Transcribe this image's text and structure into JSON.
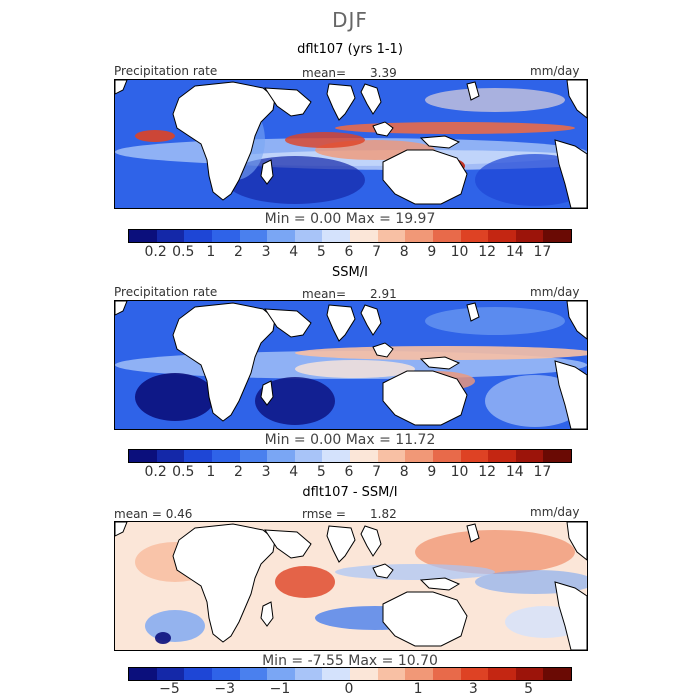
{
  "title": "DJF",
  "units": "mm/day",
  "panels": [
    {
      "title": "dflt107 (yrs 1-1)",
      "field_label": "Precipitation rate",
      "stat_label": "mean=",
      "stat_value": "3.39",
      "units": "mm/day",
      "minmax": "Min =    0.00 Max =  19.97",
      "kind": "model"
    },
    {
      "title": "SSM/I",
      "field_label": "Precipitation rate",
      "stat_label": "mean=",
      "stat_value": "2.91",
      "units": "mm/day",
      "minmax": "Min =    0.00 Max =  11.72",
      "kind": "obs"
    },
    {
      "title": "dflt107 - SSM/I",
      "field_label": "mean =  0.46",
      "stat_label": "rmse =",
      "stat_value": "1.82",
      "units": "mm/day",
      "minmax": "Min =  -7.55 Max =  10.70",
      "kind": "diff"
    }
  ],
  "colorbars": {
    "precip": {
      "colors": [
        "#0b0f7c",
        "#1428a8",
        "#1e46d6",
        "#2f63e8",
        "#4a80ee",
        "#7aa6f4",
        "#a8c4f8",
        "#d4e2fc",
        "#fbe6d8",
        "#f8c0a4",
        "#f19877",
        "#e86a4a",
        "#de4224",
        "#c42612",
        "#9c140a",
        "#6a0a04"
      ],
      "tick_labels": [
        "0.2",
        "0.5",
        "1",
        "2",
        "3",
        "4",
        "5",
        "6",
        "7",
        "8",
        "9",
        "10",
        "12",
        "14",
        "17"
      ]
    },
    "diff": {
      "colors": [
        "#0b0f7c",
        "#1428a8",
        "#1e46d6",
        "#2f63e8",
        "#4a80ee",
        "#7aa6f4",
        "#a8c4f8",
        "#d4e2fc",
        "#fbe6d8",
        "#f8c0a4",
        "#f19877",
        "#e86a4a",
        "#de4224",
        "#c42612",
        "#9c140a",
        "#6a0a04"
      ],
      "tick_labels": [
        "−5",
        "−3",
        "−1",
        "0",
        "1",
        "3",
        "5"
      ],
      "tick_positions": [
        1.5,
        3.5,
        5.5,
        8,
        10.5,
        12.5,
        14.5
      ]
    }
  },
  "chart_data": [
    {
      "type": "heatmap",
      "title": "dflt107 (yrs 1-1)",
      "variable": "Precipitation rate",
      "units": "mm/day",
      "season": "DJF",
      "mean": 3.39,
      "min": 0.0,
      "max": 19.97,
      "levels": [
        0.2,
        0.5,
        1,
        2,
        3,
        4,
        5,
        6,
        7,
        8,
        9,
        10,
        12,
        14,
        17
      ]
    },
    {
      "type": "heatmap",
      "title": "SSM/I",
      "variable": "Precipitation rate",
      "units": "mm/day",
      "season": "DJF",
      "mean": 2.91,
      "min": 0.0,
      "max": 11.72,
      "levels": [
        0.2,
        0.5,
        1,
        2,
        3,
        4,
        5,
        6,
        7,
        8,
        9,
        10,
        12,
        14,
        17
      ]
    },
    {
      "type": "heatmap",
      "title": "dflt107 - SSM/I",
      "units": "mm/day",
      "season": "DJF",
      "mean": 0.46,
      "rmse": 1.82,
      "min": -7.55,
      "max": 10.7,
      "tick_labels": [
        -5,
        -3,
        -1,
        0,
        1,
        3,
        5
      ]
    }
  ]
}
